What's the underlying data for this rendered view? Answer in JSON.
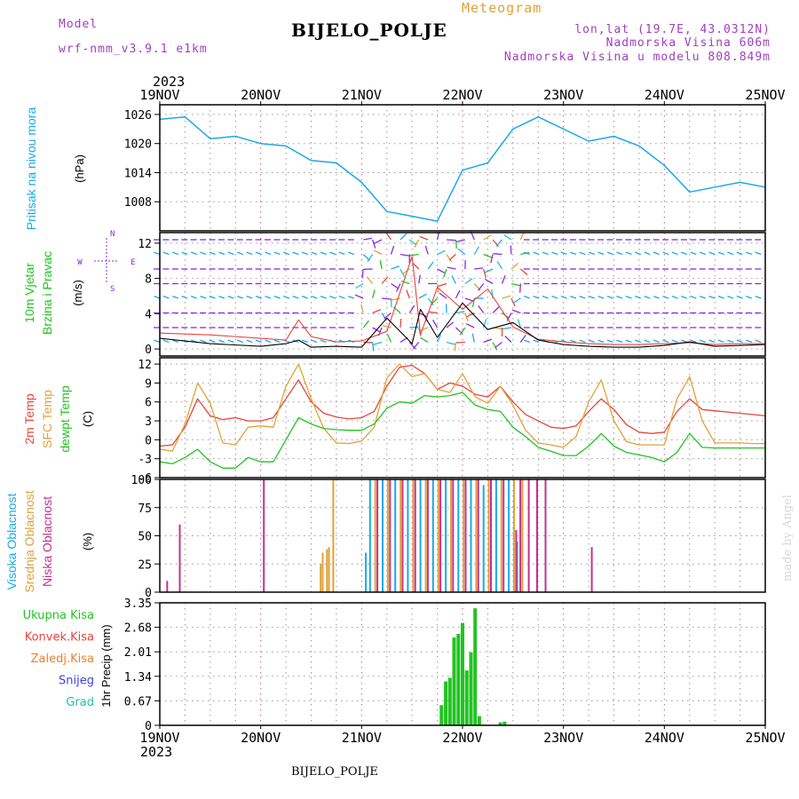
{
  "header": {
    "model_label": "Model",
    "model_name": "wrf-nmm_v3.9.1 e1km",
    "title": "Meteogram",
    "station": "BIJELO_POLJE",
    "lonlat": "lon,lat (19.7E, 43.0312N)",
    "elevation": "Nadmorska Visina 606m",
    "model_elevation": "Nadmorska Visina u modelu 808.849m",
    "year_top": "2023",
    "year_bottom": "2023",
    "footer_station": "BIJELO_POLJE",
    "watermark": "made by Angel"
  },
  "colors": {
    "pressure": "#1ca9e8",
    "t2m": "#e8453c",
    "tsfc": "#e0a23a",
    "dewpt": "#22c322",
    "cloud_high": "#1ca9e8",
    "cloud_mid": "#e0a23a",
    "cloud_low": "#c8308c",
    "precip_total": "#22c322",
    "label_conv": "#e8453c",
    "label_frozen": "#f08030",
    "label_snow": "#4040e0",
    "label_hail": "#20c0b0",
    "wind_purple": "#8a2be2",
    "meta": "#a040c0",
    "title_orange": "#e0a23a"
  },
  "chart_data": [
    {
      "panel": "pressure",
      "type": "line",
      "ylabel_1": "Pritisak na nivou mora",
      "ylabel_2": "(hPa)",
      "yticks": [
        1008,
        1014,
        1020,
        1026
      ],
      "ylim": [
        1002,
        1028
      ],
      "x_hours": [
        0,
        6,
        12,
        18,
        24,
        30,
        36,
        42,
        48,
        54,
        60,
        66,
        72,
        78,
        84,
        90,
        96,
        102,
        108,
        114,
        120,
        126,
        132,
        138,
        144
      ],
      "values": [
        1025,
        1025.5,
        1021,
        1021.5,
        1020,
        1019.5,
        1016.5,
        1016,
        1012,
        1006,
        1005,
        1004,
        1014.5,
        1016,
        1023,
        1025.5,
        1023,
        1020.5,
        1021.5,
        1019.5,
        1015.5,
        1010,
        1011,
        1012,
        1011
      ]
    },
    {
      "panel": "wind",
      "type": "line",
      "ylabel_1": "10m Vjetar",
      "ylabel_2": "Brzina i Pravac",
      "ylabel_3": "(m/s)",
      "yticks": [
        0,
        4,
        8,
        12
      ],
      "ylim": [
        -0.8,
        13.2
      ],
      "compass": {
        "n": "N",
        "s": "S",
        "e": "E",
        "w": "W"
      },
      "x_hours": [
        0,
        12,
        24,
        30,
        33,
        36,
        42,
        48,
        54,
        60,
        62,
        66,
        72,
        78,
        84,
        90,
        96,
        102,
        108,
        114,
        120,
        126,
        132,
        138,
        144
      ],
      "speed": [
        1.2,
        0.6,
        0.3,
        0.6,
        1.0,
        0.2,
        0.3,
        0.2,
        3.5,
        0.6,
        4.5,
        1.3,
        5.2,
        2.2,
        3.0,
        1.0,
        0.5,
        0.3,
        0.2,
        0.2,
        0.4,
        0.8,
        0.3,
        0.4,
        0.5
      ],
      "gust": [
        1.8,
        1.6,
        1.2,
        1.0,
        3.3,
        1.4,
        0.8,
        0.9,
        2.0,
        10.5,
        1.6,
        7.0,
        4.5,
        6.8,
        2.5,
        1.1,
        0.8,
        0.6,
        0.5,
        0.5,
        0.6,
        0.7,
        0.5,
        0.6,
        0.6
      ]
    },
    {
      "panel": "temperature",
      "type": "line",
      "ylabel_1": "2m Temp",
      "ylabel_2": "SFC Temp",
      "ylabel_3": "dewpt Temp",
      "ylabel_4": "(C)",
      "yticks": [
        -6,
        -3,
        0,
        3,
        6,
        9,
        12
      ],
      "ylim": [
        -6,
        13
      ],
      "x_hours": [
        0,
        3,
        6,
        9,
        12,
        15,
        18,
        21,
        24,
        27,
        30,
        33,
        36,
        39,
        42,
        45,
        48,
        51,
        54,
        57,
        60,
        63,
        66,
        69,
        72,
        75,
        78,
        81,
        84,
        87,
        90,
        93,
        96,
        99,
        102,
        105,
        108,
        111,
        114,
        117,
        120,
        123,
        126,
        129,
        132,
        135,
        138,
        141,
        144
      ],
      "series": [
        {
          "name": "2m Temp",
          "values": [
            -1.0,
            -0.8,
            2.0,
            6.5,
            3.8,
            3.2,
            3.5,
            3.0,
            3.0,
            3.5,
            6.5,
            9.5,
            6.0,
            4.2,
            3.6,
            3.3,
            3.5,
            4.5,
            8.5,
            11.5,
            11.8,
            10.5,
            8.0,
            9.0,
            8.5,
            7.2,
            6.8,
            8.5,
            6.0,
            4.0,
            3.0,
            2.0,
            1.8,
            2.2,
            4.5,
            6.5,
            4.8,
            2.4,
            1.2,
            1.0,
            1.2,
            4.5,
            6.5,
            4.8,
            4.6,
            4.4,
            4.2,
            4.0,
            3.8
          ]
        },
        {
          "name": "SFC Temp",
          "values": [
            -1.5,
            -1.8,
            2.5,
            9.0,
            5.8,
            -0.5,
            -0.8,
            2.0,
            2.2,
            2.0,
            8.5,
            12.0,
            6.5,
            1.8,
            -0.5,
            -0.6,
            -0.2,
            2.0,
            9.8,
            12.0,
            10.0,
            10.5,
            8.0,
            7.5,
            10.5,
            6.8,
            5.8,
            8.5,
            5.5,
            1.5,
            -0.5,
            -0.8,
            -1.2,
            0.5,
            6.0,
            9.5,
            3.0,
            -0.3,
            -0.8,
            -0.8,
            -0.8,
            6.5,
            10.0,
            3.0,
            -0.5,
            -0.5,
            -0.5,
            -0.6,
            -0.6
          ]
        },
        {
          "name": "dewpt Temp",
          "values": [
            -3.5,
            -3.8,
            -2.8,
            -1.5,
            -3.5,
            -4.5,
            -4.5,
            -2.8,
            -3.5,
            -3.5,
            0.0,
            3.5,
            2.5,
            1.8,
            1.6,
            1.5,
            1.5,
            2.5,
            5.0,
            6.0,
            5.8,
            7.0,
            6.8,
            7.0,
            7.5,
            5.5,
            4.8,
            4.5,
            2.0,
            0.5,
            -1.2,
            -1.8,
            -2.5,
            -2.5,
            -1.0,
            1.0,
            -1.0,
            -2.0,
            -2.4,
            -2.8,
            -3.5,
            -2.0,
            1.0,
            -1.2,
            -1.3,
            -1.3,
            -1.3,
            -1.3,
            -1.3
          ]
        }
      ]
    },
    {
      "panel": "clouds",
      "type": "bar",
      "ylabel_1": "Visoka Oblacnost",
      "ylabel_2": "Srednja Oblacnost",
      "ylabel_3": "Niska Oblacnost",
      "ylabel_4": "(%)",
      "yticks": [
        0,
        25,
        50,
        75,
        100
      ],
      "ylim": [
        0,
        100
      ],
      "series": [
        {
          "name": "Visoka Oblacnost",
          "x_hours": [
            49,
            50,
            53,
            56,
            59,
            62,
            65,
            68,
            71,
            74,
            77,
            80,
            83,
            85
          ],
          "values": [
            35,
            100,
            100,
            100,
            100,
            100,
            100,
            100,
            100,
            100,
            95,
            100,
            100,
            45
          ]
        },
        {
          "name": "Srednja Oblacnost",
          "x_hours": [
            38,
            38.5,
            39.5,
            40,
            41,
            51,
            54,
            57,
            60,
            63,
            66,
            69,
            72,
            75,
            78,
            81,
            84,
            84.5,
            86
          ],
          "values": [
            25,
            35,
            38,
            40,
            100,
            100,
            100,
            100,
            100,
            100,
            100,
            100,
            100,
            100,
            100,
            100,
            100,
            40,
            100
          ]
        },
        {
          "name": "Niska Oblacnost",
          "x_hours": [
            2,
            5,
            25,
            52,
            55,
            58,
            61,
            64,
            67,
            70,
            73,
            76,
            79,
            82,
            85,
            86,
            88,
            90,
            92,
            103
          ],
          "values": [
            10,
            60,
            100,
            100,
            100,
            100,
            100,
            100,
            100,
            100,
            100,
            100,
            100,
            100,
            55,
            100,
            100,
            100,
            100,
            40
          ]
        }
      ]
    },
    {
      "panel": "precip",
      "type": "bar",
      "ylabel_1": "1hr Precip (mm)",
      "legend": [
        "Ukupna Kisa",
        "Konvek.Kisa",
        "Zaledj.Kisa",
        "Snijeg",
        "Grad"
      ],
      "yticks": [
        0,
        0.67,
        1.34,
        2.01,
        2.68,
        3.35
      ],
      "ylim": [
        0,
        3.35
      ],
      "x_hours": [
        67,
        68,
        69,
        70,
        71,
        72,
        73,
        74,
        75,
        76,
        77,
        81,
        82
      ],
      "values": [
        0.55,
        1.2,
        1.3,
        2.4,
        2.5,
        2.8,
        1.5,
        2.0,
        3.2,
        0.25,
        0.02,
        0.08,
        0.1
      ]
    }
  ],
  "x_axis": {
    "day_labels": [
      "19NOV",
      "20NOV",
      "21NOV",
      "22NOV",
      "23NOV",
      "24NOV",
      "25NOV"
    ],
    "hours_total": 144
  }
}
